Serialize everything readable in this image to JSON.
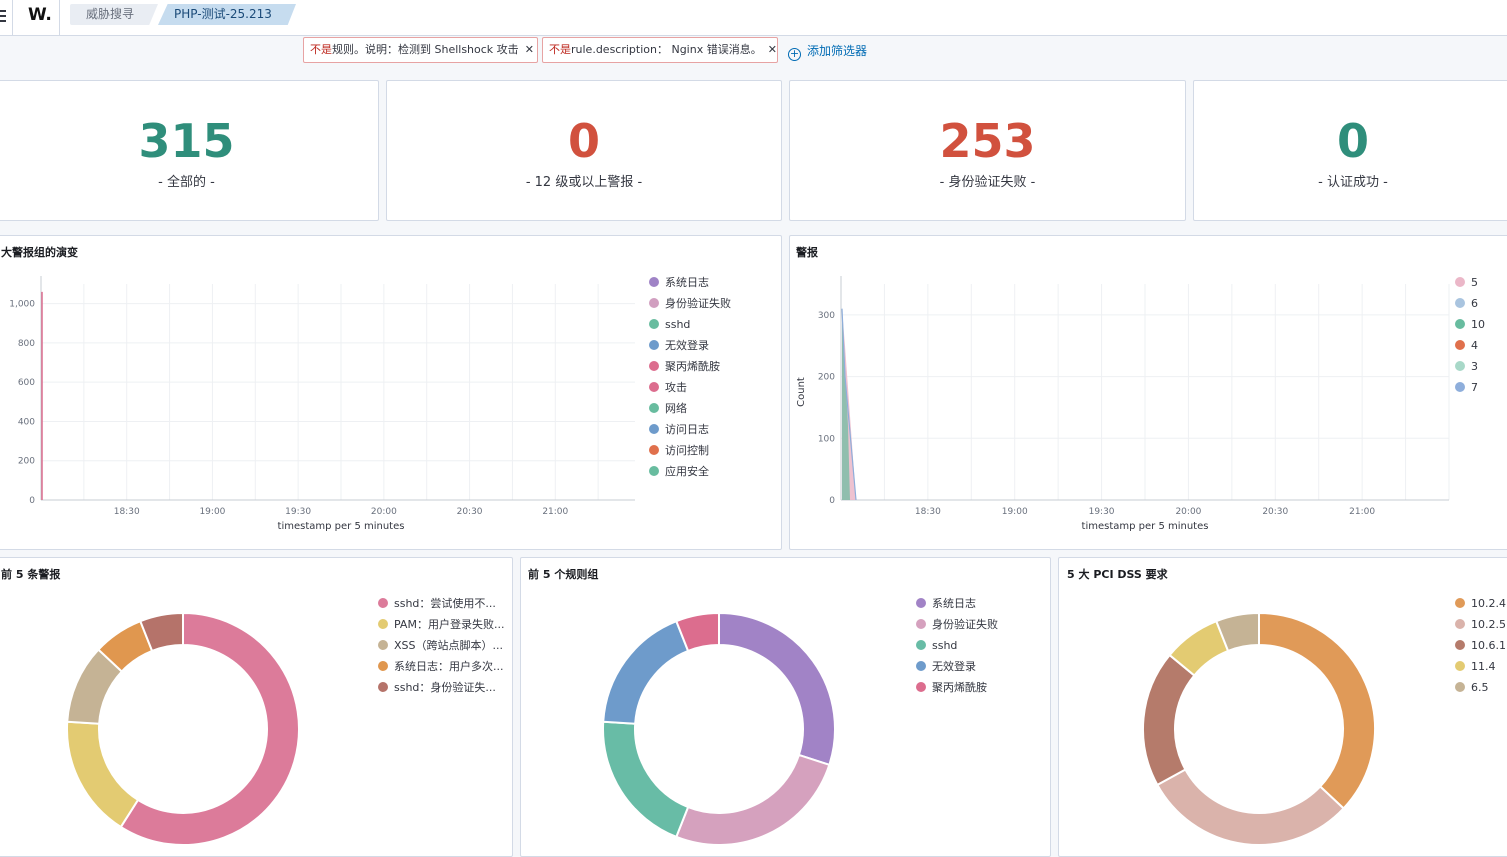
{
  "topbar": {
    "logo": "W.",
    "breadcrumbs": [
      "威胁搜寻",
      "PHP-测试-25.213"
    ]
  },
  "filters": [
    {
      "neg": "不是",
      "text": "规则。说明：检测到 Shellshock 攻击"
    },
    {
      "neg": "不是",
      "text": "rule.description： Nginx 错误消息。"
    }
  ],
  "add_filter": "添加筛选器",
  "metrics": [
    {
      "value": "315",
      "label": "- 全部的 -",
      "color": "#2f8e7b"
    },
    {
      "value": "0",
      "label": "- 12 级或以上警报 -",
      "color": "#d1513e"
    },
    {
      "value": "253",
      "label": "- 身份验证失败 -",
      "color": "#d1513e"
    },
    {
      "value": "0",
      "label": "- 认证成功 -",
      "color": "#2f8e7b"
    }
  ],
  "chart_data": [
    {
      "type": "area",
      "title": "大警报组的演变",
      "xlabel": "timestamp per 5 minutes",
      "ylabel": "",
      "x_ticks": [
        "18:30",
        "19:00",
        "19:30",
        "20:00",
        "20:30",
        "21:00"
      ],
      "y_ticks": [
        "0",
        "200",
        "400",
        "600",
        "800",
        "1,000"
      ],
      "ylim": [
        0,
        1100
      ],
      "legend_position": "right",
      "series": [
        {
          "name": "系统日志",
          "color": "#9f83c6"
        },
        {
          "name": "身份验证失败",
          "color": "#d19fc0"
        },
        {
          "name": "sshd",
          "color": "#68bc9f"
        },
        {
          "name": "无效登录",
          "color": "#6e9bcb"
        },
        {
          "name": "聚丙烯酰胺",
          "color": "#dc6d8e"
        },
        {
          "name": "攻击",
          "color": "#dc6d8e"
        },
        {
          "name": "网络",
          "color": "#68bc9f"
        },
        {
          "name": "访问日志",
          "color": "#6e9bcb"
        },
        {
          "name": "访问控制",
          "color": "#e0704c"
        },
        {
          "name": "应用安全",
          "color": "#68bc9f"
        }
      ]
    },
    {
      "type": "area",
      "title": "警报",
      "xlabel": "timestamp per 5 minutes",
      "ylabel": "Count",
      "x_ticks": [
        "18:30",
        "19:00",
        "19:30",
        "20:00",
        "20:30",
        "21:00"
      ],
      "y_ticks": [
        "0",
        "100",
        "200",
        "300"
      ],
      "ylim": [
        0,
        350
      ],
      "legend_position": "right",
      "series": [
        {
          "name": "5",
          "color": "#ebb7c8"
        },
        {
          "name": "6",
          "color": "#a9c4df"
        },
        {
          "name": "10",
          "color": "#68bc9f"
        },
        {
          "name": "4",
          "color": "#e0704c"
        },
        {
          "name": "3",
          "color": "#a8d8c8"
        },
        {
          "name": "7",
          "color": "#8eaedb"
        }
      ],
      "peak": {
        "x": "18:00",
        "y": 310
      }
    },
    {
      "type": "pie",
      "title": "前 5 条警报",
      "legend_position": "right",
      "labels": [
        "sshd：尝试使用不...",
        "PAM：用户登录失败...",
        "XSS（跨站点脚本）...",
        "系统日志：用户多次...",
        "sshd：身份验证失..."
      ],
      "values": [
        59,
        17,
        11,
        7,
        6
      ],
      "colors": [
        "#dc7b9a",
        "#e3cb72",
        "#c5b395",
        "#e0974f",
        "#b5736a"
      ]
    },
    {
      "type": "pie",
      "title": "前 5 个规则组",
      "legend_position": "right",
      "labels": [
        "系统日志",
        "身份验证失败",
        "sshd",
        "无效登录",
        "聚丙烯酰胺"
      ],
      "values": [
        30,
        26,
        20,
        18,
        6
      ],
      "colors": [
        "#a183c6",
        "#d5a1be",
        "#68bca6",
        "#6e9bcb",
        "#dc6d8e"
      ]
    },
    {
      "type": "pie",
      "title": "5 大 PCI DSS 要求",
      "legend_position": "right",
      "labels": [
        "10.2.4",
        "10.2.5",
        "10.6.1",
        "11.4",
        "6.5"
      ],
      "values": [
        37,
        30,
        19,
        8,
        6
      ],
      "colors": [
        "#e09a58",
        "#dab3ab",
        "#b57b6b",
        "#e3cb72",
        "#c5b395"
      ]
    }
  ]
}
